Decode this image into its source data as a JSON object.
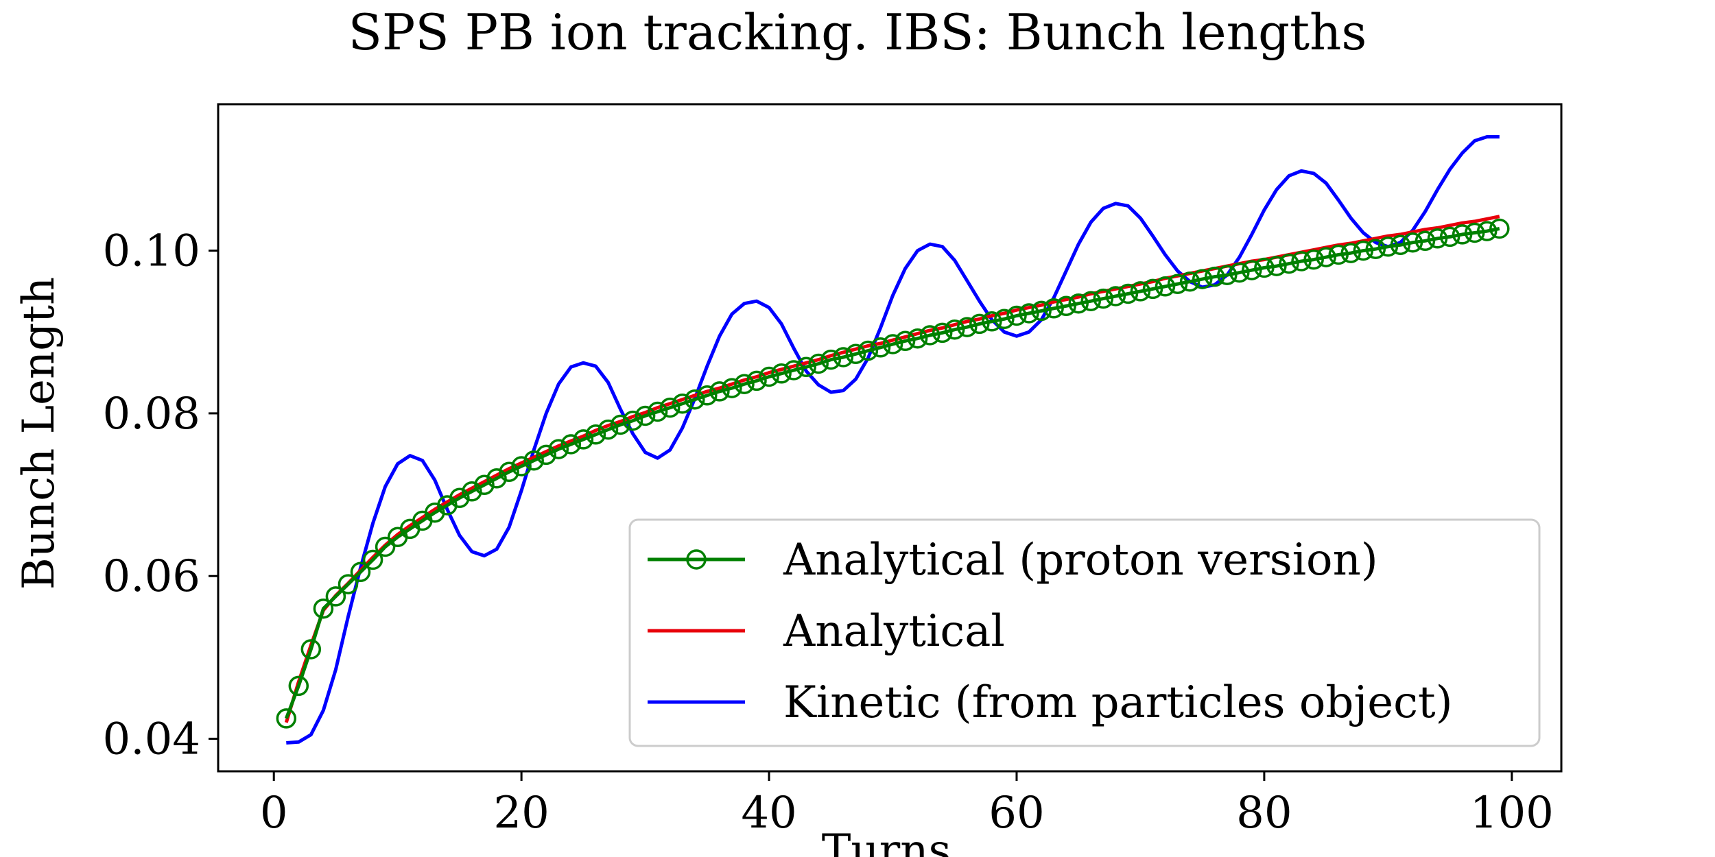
{
  "chart_data": {
    "type": "line",
    "title": "SPS PB ion tracking. IBS: Bunch lengths",
    "xlabel": "Turns",
    "ylabel": "Bunch Length",
    "xlim": [
      -4.5,
      104
    ],
    "ylim": [
      0.036,
      0.118
    ],
    "xticks": [
      0,
      20,
      40,
      60,
      80,
      100
    ],
    "yticks": [
      0.04,
      0.06,
      0.08,
      0.1
    ],
    "xtick_labels": [
      "0",
      "20",
      "40",
      "60",
      "80",
      "100"
    ],
    "ytick_labels": [
      "0.04",
      "0.06",
      "0.08",
      "0.10"
    ],
    "grid": false,
    "legend_position": "lower-right",
    "x": [
      1,
      2,
      3,
      4,
      5,
      6,
      7,
      8,
      9,
      10,
      11,
      12,
      13,
      14,
      15,
      16,
      17,
      18,
      19,
      20,
      21,
      22,
      23,
      24,
      25,
      26,
      27,
      28,
      29,
      30,
      31,
      32,
      33,
      34,
      35,
      36,
      37,
      38,
      39,
      40,
      41,
      42,
      43,
      44,
      45,
      46,
      47,
      48,
      49,
      50,
      51,
      52,
      53,
      54,
      55,
      56,
      57,
      58,
      59,
      60,
      61,
      62,
      63,
      64,
      65,
      66,
      67,
      68,
      69,
      70,
      71,
      72,
      73,
      74,
      75,
      76,
      77,
      78,
      79,
      80,
      81,
      82,
      83,
      84,
      85,
      86,
      87,
      88,
      89,
      90,
      91,
      92,
      93,
      94,
      95,
      96,
      97,
      98,
      99
    ],
    "series": [
      {
        "name": "Analytical (proton version)",
        "color": "#008000",
        "marker": "circle-open",
        "values": [
          0.0425,
          0.0465,
          0.051,
          0.056,
          0.0575,
          0.059,
          0.0605,
          0.062,
          0.0636,
          0.0648,
          0.0658,
          0.0668,
          0.0678,
          0.0687,
          0.0696,
          0.0704,
          0.0712,
          0.072,
          0.0728,
          0.0735,
          0.0742,
          0.0749,
          0.0756,
          0.0762,
          0.0768,
          0.0774,
          0.078,
          0.0786,
          0.0791,
          0.0797,
          0.0802,
          0.0807,
          0.0812,
          0.0817,
          0.0822,
          0.0827,
          0.0831,
          0.0836,
          0.084,
          0.0845,
          0.0849,
          0.0853,
          0.0857,
          0.0861,
          0.0866,
          0.0869,
          0.0873,
          0.0877,
          0.0881,
          0.0885,
          0.0889,
          0.0892,
          0.0896,
          0.0899,
          0.0903,
          0.0906,
          0.091,
          0.0913,
          0.0916,
          0.092,
          0.0923,
          0.0926,
          0.0929,
          0.0932,
          0.0935,
          0.0938,
          0.0941,
          0.0944,
          0.0947,
          0.095,
          0.0953,
          0.0956,
          0.0959,
          0.0962,
          0.0965,
          0.0968,
          0.097,
          0.0973,
          0.0976,
          0.0979,
          0.0981,
          0.0984,
          0.0987,
          0.0989,
          0.0992,
          0.0995,
          0.0997,
          0.1,
          0.1002,
          0.1005,
          0.1007,
          0.101,
          0.1012,
          0.1015,
          0.1017,
          0.102,
          0.1022,
          0.1024,
          0.1027
        ]
      },
      {
        "name": "Analytical",
        "color": "#e8000b",
        "marker": "none",
        "values": [
          0.042,
          0.047,
          0.0515,
          0.0558,
          0.0576,
          0.0591,
          0.0607,
          0.0623,
          0.0638,
          0.0651,
          0.0662,
          0.0672,
          0.0682,
          0.0691,
          0.07,
          0.0708,
          0.0716,
          0.0724,
          0.0732,
          0.0739,
          0.0746,
          0.0753,
          0.076,
          0.0766,
          0.0772,
          0.0779,
          0.0785,
          0.079,
          0.0796,
          0.0801,
          0.0807,
          0.0812,
          0.0817,
          0.0822,
          0.0827,
          0.0831,
          0.0836,
          0.0841,
          0.0845,
          0.085,
          0.0854,
          0.0858,
          0.0862,
          0.0866,
          0.0871,
          0.0875,
          0.0879,
          0.0883,
          0.0886,
          0.089,
          0.0894,
          0.0898,
          0.0902,
          0.0905,
          0.0909,
          0.0913,
          0.0916,
          0.092,
          0.0923,
          0.0927,
          0.093,
          0.0933,
          0.0937,
          0.094,
          0.0943,
          0.0947,
          0.095,
          0.0953,
          0.0956,
          0.0959,
          0.0962,
          0.0966,
          0.0969,
          0.0972,
          0.0975,
          0.0978,
          0.0981,
          0.0984,
          0.0987,
          0.0989,
          0.0992,
          0.0995,
          0.0998,
          0.1001,
          0.1004,
          0.1007,
          0.1009,
          0.1012,
          0.1015,
          0.1018,
          0.102,
          0.1023,
          0.1026,
          0.1028,
          0.1031,
          0.1034,
          0.1036,
          0.1039,
          0.1042
        ]
      },
      {
        "name": "Kinetic (from particles object)",
        "color": "#0000ff",
        "marker": "none",
        "values": [
          0.0395,
          0.0396,
          0.0405,
          0.0435,
          0.0485,
          0.055,
          0.061,
          0.0665,
          0.071,
          0.0738,
          0.0748,
          0.0742,
          0.0718,
          0.0682,
          0.065,
          0.063,
          0.0625,
          0.0633,
          0.066,
          0.0705,
          0.0755,
          0.08,
          0.0836,
          0.0857,
          0.0862,
          0.0858,
          0.0838,
          0.0805,
          0.0775,
          0.0752,
          0.0745,
          0.0755,
          0.0782,
          0.0818,
          0.0858,
          0.0895,
          0.0922,
          0.0935,
          0.0938,
          0.093,
          0.091,
          0.088,
          0.0852,
          0.0835,
          0.0826,
          0.0828,
          0.0842,
          0.0868,
          0.0905,
          0.0945,
          0.0978,
          0.1,
          0.1008,
          0.1005,
          0.0988,
          0.0963,
          0.0938,
          0.0915,
          0.09,
          0.0895,
          0.09,
          0.0915,
          0.0942,
          0.0975,
          0.1008,
          0.1035,
          0.1052,
          0.1058,
          0.1055,
          0.104,
          0.1018,
          0.0995,
          0.0975,
          0.0962,
          0.0955,
          0.0958,
          0.097,
          0.0992,
          0.102,
          0.105,
          0.1075,
          0.1092,
          0.1098,
          0.1095,
          0.1083,
          0.1062,
          0.104,
          0.1022,
          0.101,
          0.1005,
          0.101,
          0.1025,
          0.1048,
          0.1075,
          0.11,
          0.112,
          0.1135,
          0.114,
          0.114
        ]
      }
    ]
  }
}
